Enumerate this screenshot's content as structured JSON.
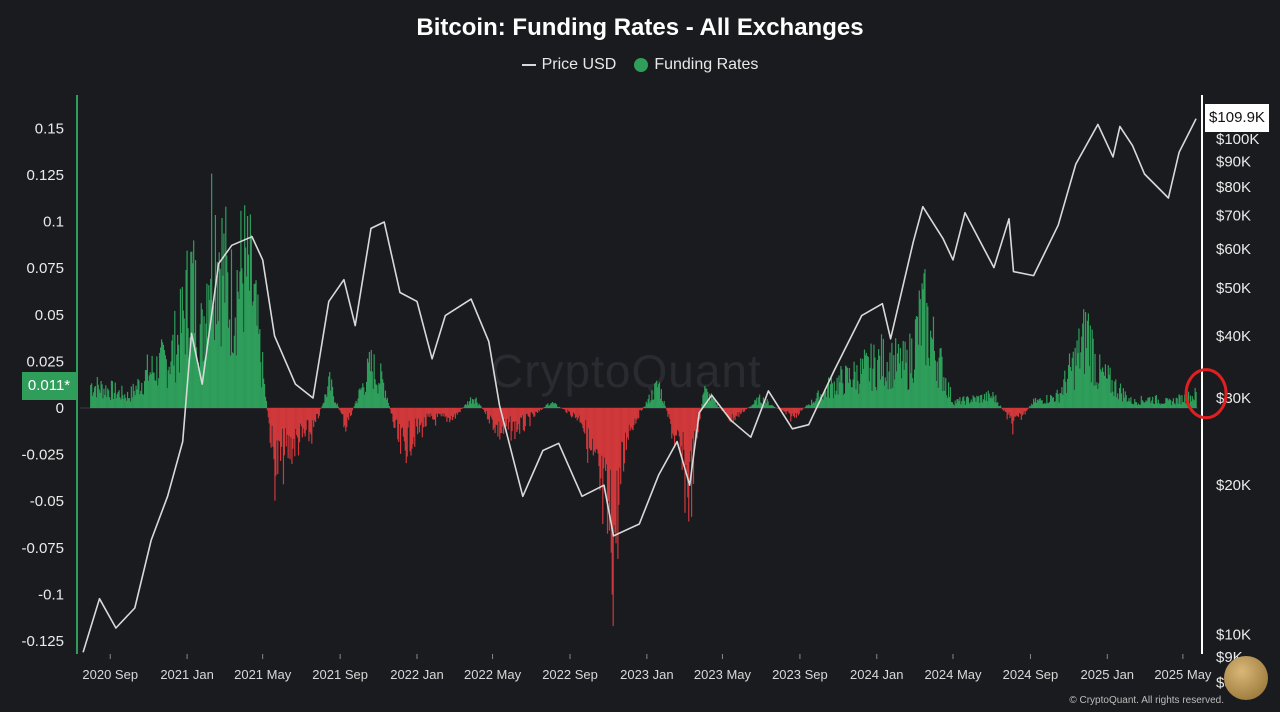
{
  "chart_data": {
    "type": "area",
    "title": "Bitcoin: Funding Rates - All Exchanges",
    "legend": {
      "placement": "top-center",
      "items": [
        "Price USD",
        "Funding Rates"
      ]
    },
    "x": {
      "range": [
        "2020-07-15",
        "2025-05-25"
      ],
      "ticks": [
        {
          "label": "2020 Sep",
          "date": "2020-09-01"
        },
        {
          "label": "2021 Jan",
          "date": "2021-01-01"
        },
        {
          "label": "2021 May",
          "date": "2021-05-01"
        },
        {
          "label": "2021 Sep",
          "date": "2021-09-01"
        },
        {
          "label": "2022 Jan",
          "date": "2022-01-01"
        },
        {
          "label": "2022 May",
          "date": "2022-05-01"
        },
        {
          "label": "2022 Sep",
          "date": "2022-09-01"
        },
        {
          "label": "2023 Jan",
          "date": "2023-01-01"
        },
        {
          "label": "2023 May",
          "date": "2023-05-01"
        },
        {
          "label": "2023 Sep",
          "date": "2023-09-01"
        },
        {
          "label": "2024 Jan",
          "date": "2024-01-01"
        },
        {
          "label": "2024 May",
          "date": "2024-05-01"
        },
        {
          "label": "2024 Sep",
          "date": "2024-09-01"
        },
        {
          "label": "2025 Jan",
          "date": "2025-01-01"
        },
        {
          "label": "2025 May",
          "date": "2025-05-01"
        }
      ]
    },
    "y_left": {
      "label": "",
      "range": [
        -0.13,
        0.16
      ],
      "ticks": [
        "0.15",
        "0.125",
        "0.1",
        "0.075",
        "0.05",
        "0.025",
        "0",
        "-0.025",
        "-0.05",
        "-0.075",
        "-0.1",
        "-0.125"
      ]
    },
    "y_right": {
      "label": "",
      "scale": "log",
      "range": [
        8000,
        120000
      ],
      "ticks": [
        {
          "label": "$100K",
          "value": 100000
        },
        {
          "label": "$90K",
          "value": 90000
        },
        {
          "label": "$80K",
          "value": 80000
        },
        {
          "label": "$70K",
          "value": 70000
        },
        {
          "label": "$60K",
          "value": 60000
        },
        {
          "label": "$50K",
          "value": 50000
        },
        {
          "label": "$40K",
          "value": 40000
        },
        {
          "label": "$30K",
          "value": 30000
        },
        {
          "label": "$20K",
          "value": 20000
        },
        {
          "label": "$10K",
          "value": 10000
        },
        {
          "label": "$9K",
          "value": 9000
        },
        {
          "label": "$8K",
          "value": 8000
        }
      ]
    },
    "current_funding_label": "0.011*",
    "current_price_label": "$109.9K",
    "series": [
      {
        "name": "Price USD",
        "color": "#d9d9d9",
        "points": [
          [
            "2020-07-20",
            9200
          ],
          [
            "2020-08-15",
            11800
          ],
          [
            "2020-09-10",
            10300
          ],
          [
            "2020-10-10",
            11300
          ],
          [
            "2020-11-05",
            15500
          ],
          [
            "2020-12-01",
            19000
          ],
          [
            "2020-12-25",
            24500
          ],
          [
            "2021-01-08",
            40500
          ],
          [
            "2021-01-25",
            32000
          ],
          [
            "2021-02-20",
            56000
          ],
          [
            "2021-03-13",
            61000
          ],
          [
            "2021-04-14",
            63500
          ],
          [
            "2021-05-01",
            57000
          ],
          [
            "2021-05-20",
            40000
          ],
          [
            "2021-06-22",
            32000
          ],
          [
            "2021-07-20",
            30000
          ],
          [
            "2021-08-14",
            47000
          ],
          [
            "2021-09-07",
            52000
          ],
          [
            "2021-09-25",
            42000
          ],
          [
            "2021-10-20",
            66000
          ],
          [
            "2021-11-10",
            68000
          ],
          [
            "2021-12-05",
            49000
          ],
          [
            "2022-01-01",
            47000
          ],
          [
            "2022-01-25",
            36000
          ],
          [
            "2022-02-15",
            44000
          ],
          [
            "2022-03-28",
            47500
          ],
          [
            "2022-04-25",
            39000
          ],
          [
            "2022-05-12",
            29000
          ],
          [
            "2022-06-18",
            19000
          ],
          [
            "2022-07-20",
            23500
          ],
          [
            "2022-08-14",
            24300
          ],
          [
            "2022-09-20",
            19000
          ],
          [
            "2022-10-25",
            20000
          ],
          [
            "2022-11-09",
            15800
          ],
          [
            "2022-12-20",
            16700
          ],
          [
            "2023-01-20",
            21000
          ],
          [
            "2023-02-18",
            24500
          ],
          [
            "2023-03-10",
            20000
          ],
          [
            "2023-03-25",
            28000
          ],
          [
            "2023-04-14",
            30400
          ],
          [
            "2023-05-15",
            27000
          ],
          [
            "2023-06-15",
            25000
          ],
          [
            "2023-07-13",
            31000
          ],
          [
            "2023-08-20",
            26000
          ],
          [
            "2023-09-15",
            26500
          ],
          [
            "2023-10-25",
            34000
          ],
          [
            "2023-12-08",
            44000
          ],
          [
            "2024-01-10",
            46500
          ],
          [
            "2024-01-23",
            39500
          ],
          [
            "2024-02-28",
            62000
          ],
          [
            "2024-03-14",
            73000
          ],
          [
            "2024-04-15",
            63000
          ],
          [
            "2024-05-01",
            57000
          ],
          [
            "2024-05-20",
            71000
          ],
          [
            "2024-07-05",
            55000
          ],
          [
            "2024-07-29",
            69000
          ],
          [
            "2024-08-05",
            54000
          ],
          [
            "2024-09-06",
            53000
          ],
          [
            "2024-10-15",
            67000
          ],
          [
            "2024-11-12",
            89000
          ],
          [
            "2024-12-17",
            107000
          ],
          [
            "2025-01-10",
            92000
          ],
          [
            "2025-01-21",
            106000
          ],
          [
            "2025-02-10",
            97000
          ],
          [
            "2025-03-01",
            85000
          ],
          [
            "2025-04-08",
            76000
          ],
          [
            "2025-04-25",
            94000
          ],
          [
            "2025-05-22",
            109900
          ]
        ]
      },
      {
        "name": "Funding Rates",
        "color_positive": "#2f9e5b",
        "color_negative": "#d0383b",
        "points": [
          [
            "2020-08-01",
            0.02
          ],
          [
            "2020-09-01",
            0.015
          ],
          [
            "2020-10-01",
            0.01
          ],
          [
            "2020-11-01",
            0.03
          ],
          [
            "2020-12-01",
            0.04
          ],
          [
            "2020-12-20",
            0.06
          ],
          [
            "2021-01-08",
            0.11
          ],
          [
            "2021-01-25",
            0.06
          ],
          [
            "2021-02-08",
            0.15
          ],
          [
            "2021-02-20",
            0.14
          ],
          [
            "2021-03-10",
            0.09
          ],
          [
            "2021-04-01",
            0.12
          ],
          [
            "2021-04-14",
            0.1
          ],
          [
            "2021-05-01",
            0.03
          ],
          [
            "2021-05-20",
            -0.05
          ],
          [
            "2021-06-20",
            -0.03
          ],
          [
            "2021-07-20",
            -0.02
          ],
          [
            "2021-08-15",
            0.02
          ],
          [
            "2021-09-10",
            -0.015
          ],
          [
            "2021-10-20",
            0.035
          ],
          [
            "2021-11-10",
            0.02
          ],
          [
            "2021-12-05",
            -0.035
          ],
          [
            "2022-01-20",
            -0.01
          ],
          [
            "2022-03-01",
            -0.008
          ],
          [
            "2022-04-01",
            0.01
          ],
          [
            "2022-05-12",
            -0.02
          ],
          [
            "2022-06-18",
            -0.015
          ],
          [
            "2022-08-01",
            0.005
          ],
          [
            "2022-09-20",
            -0.01
          ],
          [
            "2022-11-09",
            -0.118
          ],
          [
            "2022-12-01",
            -0.02
          ],
          [
            "2023-01-20",
            0.02
          ],
          [
            "2023-03-10",
            -0.07
          ],
          [
            "2023-04-01",
            0.015
          ],
          [
            "2023-05-15",
            -0.01
          ],
          [
            "2023-07-01",
            0.008
          ],
          [
            "2023-08-20",
            -0.008
          ],
          [
            "2023-10-25",
            0.02
          ],
          [
            "2023-12-08",
            0.03
          ],
          [
            "2024-01-10",
            0.04
          ],
          [
            "2024-02-20",
            0.035
          ],
          [
            "2024-03-14",
            0.08
          ],
          [
            "2024-04-15",
            0.03
          ],
          [
            "2024-05-01",
            0.005
          ],
          [
            "2024-07-05",
            0.01
          ],
          [
            "2024-08-05",
            -0.015
          ],
          [
            "2024-09-06",
            0.005
          ],
          [
            "2024-10-15",
            0.01
          ],
          [
            "2024-11-12",
            0.04
          ],
          [
            "2024-12-01",
            0.065
          ],
          [
            "2024-12-17",
            0.03
          ],
          [
            "2025-01-21",
            0.015
          ],
          [
            "2025-02-10",
            0.005
          ],
          [
            "2025-03-10",
            0.008
          ],
          [
            "2025-04-08",
            0.005
          ],
          [
            "2025-05-22",
            0.011
          ]
        ]
      }
    ],
    "annotations": [
      {
        "type": "circle",
        "color": "#e02020",
        "at_date": "2025-05-22",
        "at_funding": 0.005
      }
    ]
  },
  "watermark": "CryptoQuant",
  "copyright": "© CryptoQuant. All rights reserved.",
  "logo_text": "Dan"
}
